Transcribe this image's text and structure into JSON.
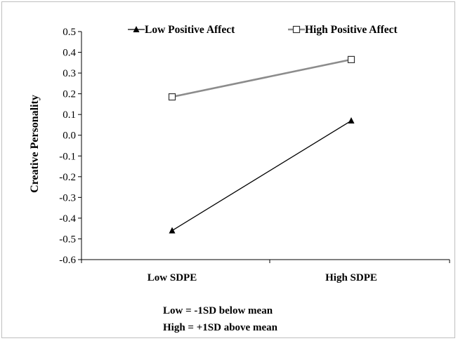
{
  "chart_data": {
    "type": "line",
    "categories": [
      "Low SDPE",
      "High SDPE"
    ],
    "ylabel": "Creative Personality",
    "ylim": [
      -0.6,
      0.5
    ],
    "yticks": [
      "0.5",
      "0.4",
      "0.3",
      "0.2",
      "0.1",
      "0.0",
      "-0.1",
      "-0.2",
      "-0.3",
      "-0.4",
      "-0.5",
      "-0.6"
    ],
    "grid": false,
    "legend_position": "top",
    "series": [
      {
        "name": "Low Positive Affect",
        "values": [
          -0.46,
          0.07
        ],
        "color": "#000000",
        "marker": "filled-triangle"
      },
      {
        "name": "High Positive Affect",
        "values": [
          0.185,
          0.365
        ],
        "color": "#8c8c8c",
        "marker": "open-square"
      }
    ],
    "notes": [
      "Low = -1SD below mean",
      "High = +1SD above mean"
    ]
  }
}
